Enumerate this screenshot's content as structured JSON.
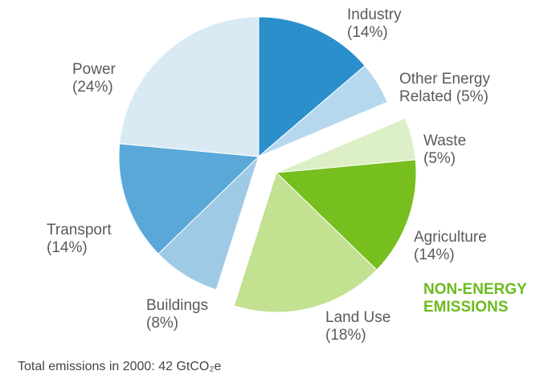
{
  "chart_data": {
    "type": "pie",
    "categories": [
      "Industry",
      "Other Energy Related",
      "Waste",
      "Agriculture",
      "Land Use",
      "Buildings",
      "Transport",
      "Power"
    ],
    "values": [
      14,
      5,
      5,
      14,
      18,
      8,
      14,
      24
    ],
    "value_labels": [
      "(14%)",
      "(5%)",
      "(5%)",
      "(14%)",
      "(18%)",
      "(8%)",
      "(14%)",
      "(24%)"
    ],
    "colors": [
      "#2a8fcb",
      "#b6d8ee",
      "#dcefc6",
      "#76bf1e",
      "#c2e191",
      "#9fcae6",
      "#5aa8d8",
      "#d9eaf5"
    ],
    "exploded": [
      false,
      false,
      true,
      true,
      true,
      false,
      false,
      false
    ],
    "annotation": "NON-ENERGY EMISSIONS",
    "footnote": "Total emissions in 2000: 42 GtCO₂e"
  }
}
